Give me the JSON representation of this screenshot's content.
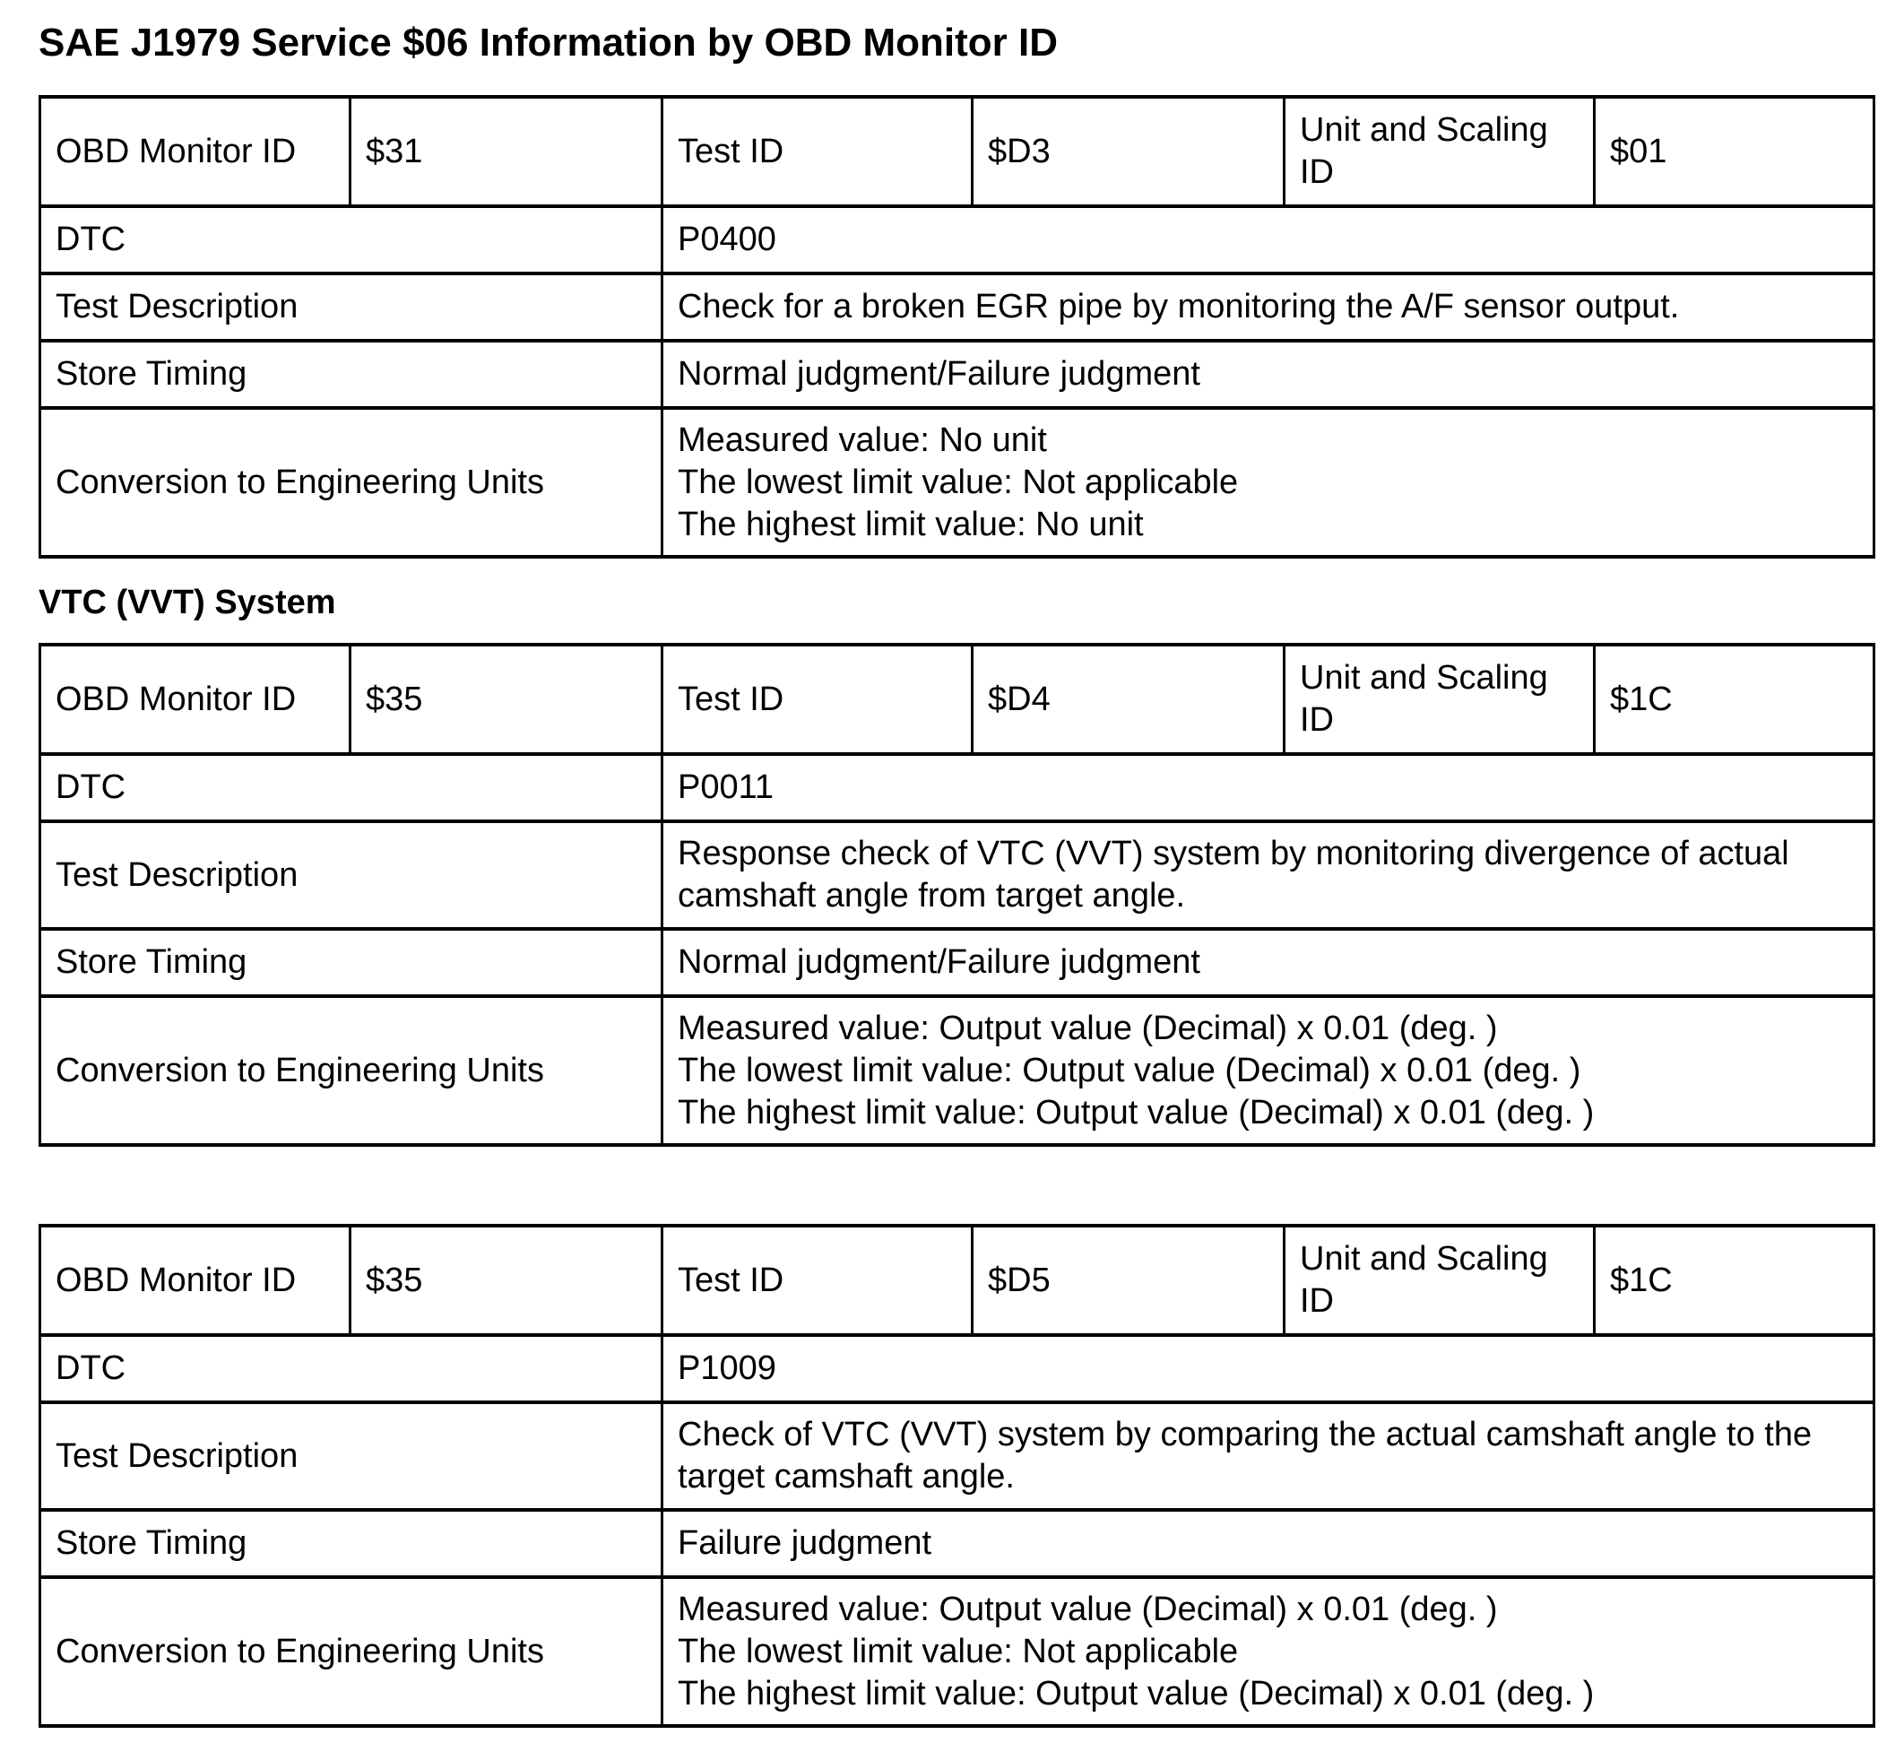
{
  "page_title": "SAE J1979 Service $06 Information by OBD Monitor ID",
  "section_heading": "VTC (VVT) System",
  "labels": {
    "obd_monitor_id": "OBD Monitor ID",
    "test_id": "Test ID",
    "unit_scaling_id": "Unit and Scaling ID",
    "dtc": "DTC",
    "test_description": "Test Description",
    "store_timing": "Store Timing",
    "conversion": "Conversion to Engineering Units"
  },
  "tables": [
    {
      "obd_monitor_id": "$31",
      "test_id": "$D3",
      "unit_scaling_id": "$01",
      "dtc": "P0400",
      "test_description": "Check for a broken EGR pipe by monitoring the A/F sensor output.",
      "store_timing": "Normal judgment/Failure judgment",
      "conversion_lines": [
        "Measured value: No unit",
        "The lowest limit value: Not applicable",
        "The highest limit value: No unit"
      ]
    },
    {
      "obd_monitor_id": "$35",
      "test_id": "$D4",
      "unit_scaling_id": "$1C",
      "dtc": "P0011",
      "test_description": "Response check of VTC (VVT) system by monitoring divergence of actual camshaft angle from target angle.",
      "store_timing": "Normal judgment/Failure judgment",
      "conversion_lines": [
        "Measured value: Output value (Decimal) x 0.01 (deg. )",
        "The lowest limit value: Output value (Decimal) x 0.01 (deg. )",
        "The highest limit value: Output value (Decimal) x 0.01 (deg. )"
      ]
    },
    {
      "obd_monitor_id": "$35",
      "test_id": "$D5",
      "unit_scaling_id": "$1C",
      "dtc": "P1009",
      "test_description": "Check of VTC (VVT) system by comparing the actual camshaft angle to the target camshaft angle.",
      "store_timing": "Failure judgment",
      "conversion_lines": [
        "Measured value: Output value (Decimal) x 0.01 (deg. )",
        "The lowest limit value: Not applicable",
        "The highest limit value: Output value (Decimal) x 0.01 (deg. )"
      ]
    }
  ]
}
